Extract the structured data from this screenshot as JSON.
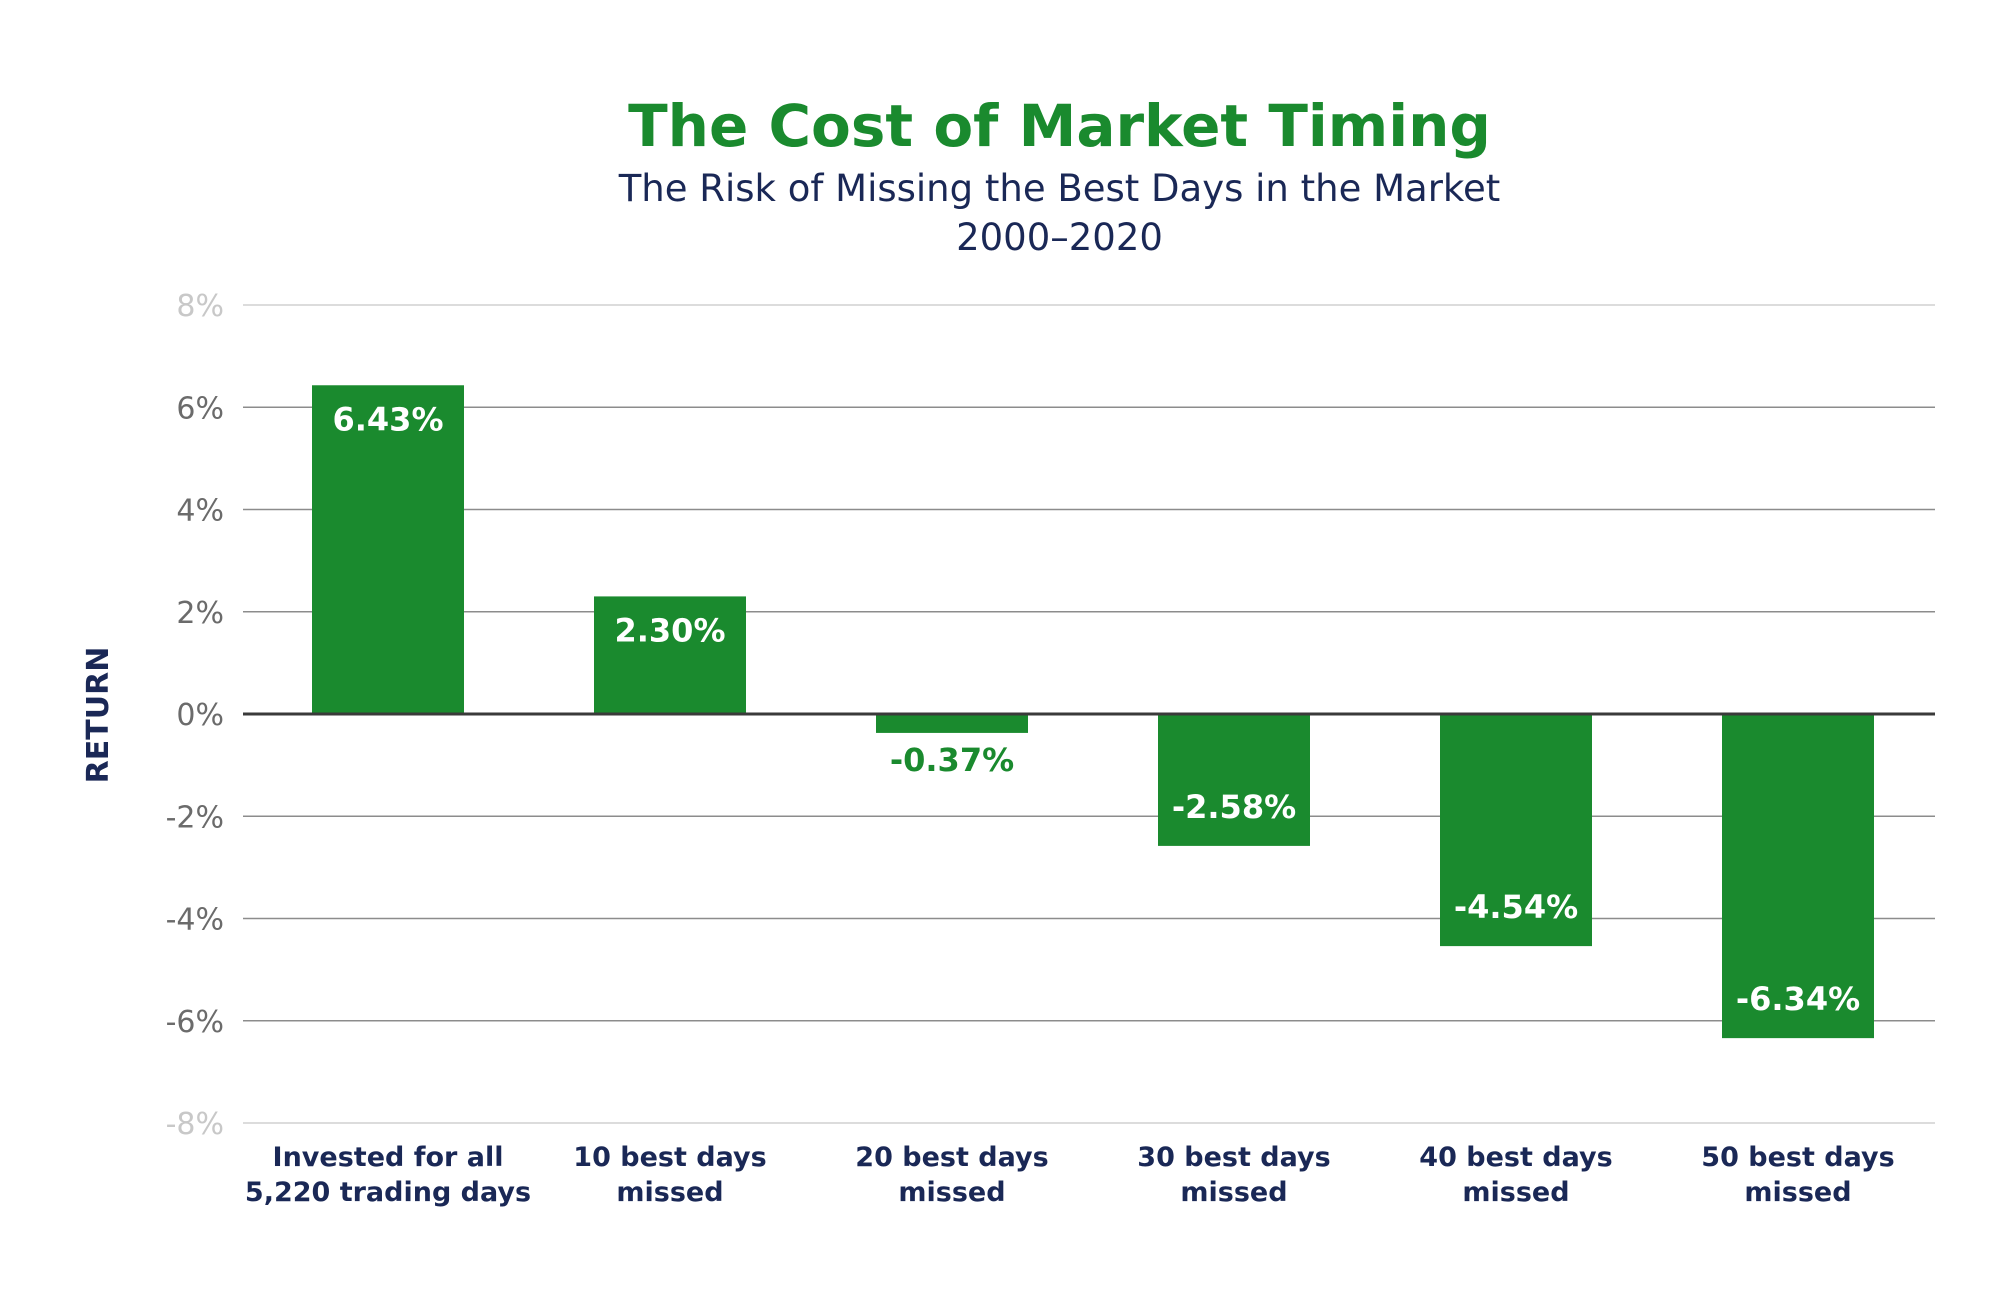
{
  "chart_data": {
    "type": "bar",
    "title": "The Cost of Market Timing",
    "subtitle": "The Risk of Missing the Best Days in the Market",
    "period": "2000–2020",
    "ylabel": "RETURN",
    "xlabel": "",
    "ylim": [
      -8,
      8
    ],
    "yticks": [
      8,
      6,
      4,
      2,
      0,
      -2,
      -4,
      -6,
      -8
    ],
    "ytick_labels": [
      "8%",
      "6%",
      "4%",
      "2%",
      "0%",
      "-2%",
      "-4%",
      "-6%",
      "-8%"
    ],
    "categories": [
      [
        "Invested for all",
        "5,220 trading days"
      ],
      [
        "10 best days",
        "missed"
      ],
      [
        "20 best days",
        "missed"
      ],
      [
        "30 best days",
        "missed"
      ],
      [
        "40 best days",
        "missed"
      ],
      [
        "50 best days",
        "missed"
      ]
    ],
    "values": [
      6.43,
      2.3,
      -0.37,
      -2.58,
      -4.54,
      -6.34
    ],
    "value_labels": [
      "6.43%",
      "2.30%",
      "-0.37%",
      "-2.58%",
      "-4.54%",
      "-6.34%"
    ],
    "grid": true,
    "colors": {
      "bar": "#1a8a2e",
      "title": "#1a8a2e",
      "text": "#1a2856",
      "grid": "#8c8c8c",
      "zero_line": "#3a3a3a"
    }
  }
}
